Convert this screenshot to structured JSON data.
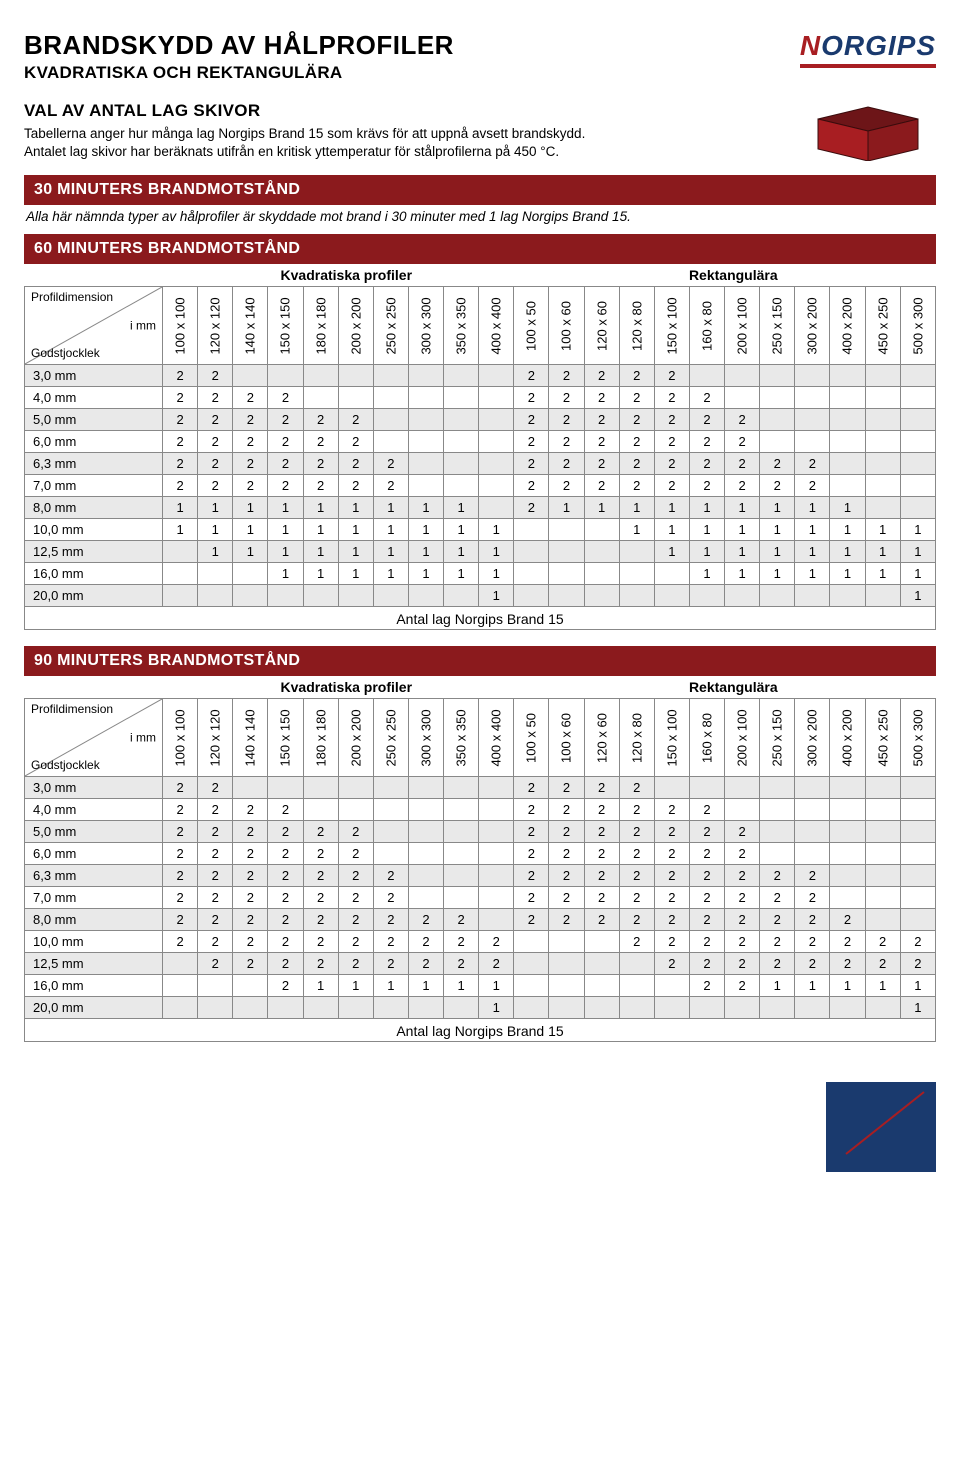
{
  "colors": {
    "brand_red": "#a81e22",
    "brand_blue": "#1a3a6e",
    "section_bar": "#8b1a1d",
    "zebra": "#e9e9e9",
    "border": "#888888",
    "background": "#ffffff",
    "text": "#000000"
  },
  "logo": {
    "n": "N",
    "rest": "ORGIPS"
  },
  "header": {
    "title": "BRANDSKYDD AV HÅLPROFILER",
    "subtitle": "KVADRATISKA OCH REKTANGULÄRA"
  },
  "intro": {
    "heading": "VAL AV ANTAL LAG SKIVOR",
    "line1": "Tabellerna anger hur många lag Norgips Brand 15 som krävs för att uppnå avsett brandskydd.",
    "line2": "Antalet lag skivor har beräknats utifrån en kritisk yttemperatur för stålprofilerna på 450 °C."
  },
  "legend": {
    "top": "Profildimension",
    "mid": "i mm",
    "bot": "Godstjocklek"
  },
  "group_labels": {
    "kvadratiska": "Kvadratiska profiler",
    "rektangulara": "Rektangulära"
  },
  "caption": "Antal lag Norgips Brand 15",
  "section30": {
    "title": "30 MINUTERS BRANDMOTSTÅND",
    "note": "Alla här nämnda typer av hålprofiler är skyddade mot brand i 30 minuter med 1 lag Norgips Brand 15."
  },
  "columns_kv": [
    "100 x 100",
    "120 x 120",
    "140 x 140",
    "150 x 150",
    "180 x 180",
    "200 x 200",
    "250 x 250",
    "300 x 300",
    "350 x 350",
    "400 x 400"
  ],
  "columns_re": [
    "100 x 50",
    "100 x 60",
    "120 x 60",
    "120 x 80",
    "150 x 100",
    "160 x 80",
    "200 x 100",
    "250 x 150",
    "300 x 200",
    "400 x 200",
    "450 x 250",
    "500 x 300"
  ],
  "rows": [
    "3,0 mm",
    "4,0 mm",
    "5,0 mm",
    "6,0 mm",
    "6,3 mm",
    "7,0 mm",
    "8,0 mm",
    "10,0 mm",
    "12,5 mm",
    "16,0 mm",
    "20,0 mm"
  ],
  "table60": {
    "title": "60 MINUTERS BRANDMOTSTÅND",
    "data": [
      [
        "2",
        "2",
        "",
        "",
        "",
        "",
        "",
        "",
        "",
        "",
        "2",
        "2",
        "2",
        "2",
        "2",
        "",
        "",
        "",
        "",
        "",
        "",
        ""
      ],
      [
        "2",
        "2",
        "2",
        "2",
        "",
        "",
        "",
        "",
        "",
        "",
        "2",
        "2",
        "2",
        "2",
        "2",
        "2",
        "",
        "",
        "",
        "",
        "",
        ""
      ],
      [
        "2",
        "2",
        "2",
        "2",
        "2",
        "2",
        "",
        "",
        "",
        "",
        "2",
        "2",
        "2",
        "2",
        "2",
        "2",
        "2",
        "",
        "",
        "",
        "",
        ""
      ],
      [
        "2",
        "2",
        "2",
        "2",
        "2",
        "2",
        "",
        "",
        "",
        "",
        "2",
        "2",
        "2",
        "2",
        "2",
        "2",
        "2",
        "",
        "",
        "",
        "",
        ""
      ],
      [
        "2",
        "2",
        "2",
        "2",
        "2",
        "2",
        "2",
        "",
        "",
        "",
        "2",
        "2",
        "2",
        "2",
        "2",
        "2",
        "2",
        "2",
        "2",
        "",
        "",
        ""
      ],
      [
        "2",
        "2",
        "2",
        "2",
        "2",
        "2",
        "2",
        "",
        "",
        "",
        "2",
        "2",
        "2",
        "2",
        "2",
        "2",
        "2",
        "2",
        "2",
        "",
        "",
        ""
      ],
      [
        "1",
        "1",
        "1",
        "1",
        "1",
        "1",
        "1",
        "1",
        "1",
        "",
        "2",
        "1",
        "1",
        "1",
        "1",
        "1",
        "1",
        "1",
        "1",
        "1",
        "",
        ""
      ],
      [
        "1",
        "1",
        "1",
        "1",
        "1",
        "1",
        "1",
        "1",
        "1",
        "1",
        "",
        "",
        "",
        "1",
        "1",
        "1",
        "1",
        "1",
        "1",
        "1",
        "1",
        "1"
      ],
      [
        "",
        "1",
        "1",
        "1",
        "1",
        "1",
        "1",
        "1",
        "1",
        "1",
        "",
        "",
        "",
        "",
        "1",
        "1",
        "1",
        "1",
        "1",
        "1",
        "1",
        "1"
      ],
      [
        "",
        "",
        "",
        "1",
        "1",
        "1",
        "1",
        "1",
        "1",
        "1",
        "",
        "",
        "",
        "",
        "",
        "1",
        "1",
        "1",
        "1",
        "1",
        "1",
        "1"
      ],
      [
        "",
        "",
        "",
        "",
        "",
        "",
        "",
        "",
        "",
        "1",
        "",
        "",
        "",
        "",
        "",
        "",
        "",
        "",
        "",
        "",
        "",
        "1"
      ]
    ]
  },
  "table90": {
    "title": "90 MINUTERS BRANDMOTSTÅND",
    "data": [
      [
        "2",
        "2",
        "",
        "",
        "",
        "",
        "",
        "",
        "",
        "",
        "2",
        "2",
        "2",
        "2",
        "",
        "",
        "",
        "",
        "",
        "",
        "",
        ""
      ],
      [
        "2",
        "2",
        "2",
        "2",
        "",
        "",
        "",
        "",
        "",
        "",
        "2",
        "2",
        "2",
        "2",
        "2",
        "2",
        "",
        "",
        "",
        "",
        "",
        ""
      ],
      [
        "2",
        "2",
        "2",
        "2",
        "2",
        "2",
        "",
        "",
        "",
        "",
        "2",
        "2",
        "2",
        "2",
        "2",
        "2",
        "2",
        "",
        "",
        "",
        "",
        ""
      ],
      [
        "2",
        "2",
        "2",
        "2",
        "2",
        "2",
        "",
        "",
        "",
        "",
        "2",
        "2",
        "2",
        "2",
        "2",
        "2",
        "2",
        "",
        "",
        "",
        "",
        ""
      ],
      [
        "2",
        "2",
        "2",
        "2",
        "2",
        "2",
        "2",
        "",
        "",
        "",
        "2",
        "2",
        "2",
        "2",
        "2",
        "2",
        "2",
        "2",
        "2",
        "",
        "",
        ""
      ],
      [
        "2",
        "2",
        "2",
        "2",
        "2",
        "2",
        "2",
        "",
        "",
        "",
        "2",
        "2",
        "2",
        "2",
        "2",
        "2",
        "2",
        "2",
        "2",
        "",
        "",
        ""
      ],
      [
        "2",
        "2",
        "2",
        "2",
        "2",
        "2",
        "2",
        "2",
        "2",
        "",
        "2",
        "2",
        "2",
        "2",
        "2",
        "2",
        "2",
        "2",
        "2",
        "2",
        "",
        ""
      ],
      [
        "2",
        "2",
        "2",
        "2",
        "2",
        "2",
        "2",
        "2",
        "2",
        "2",
        "",
        "",
        "",
        "2",
        "2",
        "2",
        "2",
        "2",
        "2",
        "2",
        "2",
        "2"
      ],
      [
        "",
        "2",
        "2",
        "2",
        "2",
        "2",
        "2",
        "2",
        "2",
        "2",
        "",
        "",
        "",
        "",
        "2",
        "2",
        "2",
        "2",
        "2",
        "2",
        "2",
        "2"
      ],
      [
        "",
        "",
        "",
        "2",
        "1",
        "1",
        "1",
        "1",
        "1",
        "1",
        "",
        "",
        "",
        "",
        "",
        "2",
        "2",
        "1",
        "1",
        "1",
        "1",
        "1"
      ],
      [
        "",
        "",
        "",
        "",
        "",
        "",
        "",
        "",
        "",
        "1",
        "",
        "",
        "",
        "",
        "",
        "",
        "",
        "",
        "",
        "",
        "",
        "1"
      ]
    ]
  }
}
